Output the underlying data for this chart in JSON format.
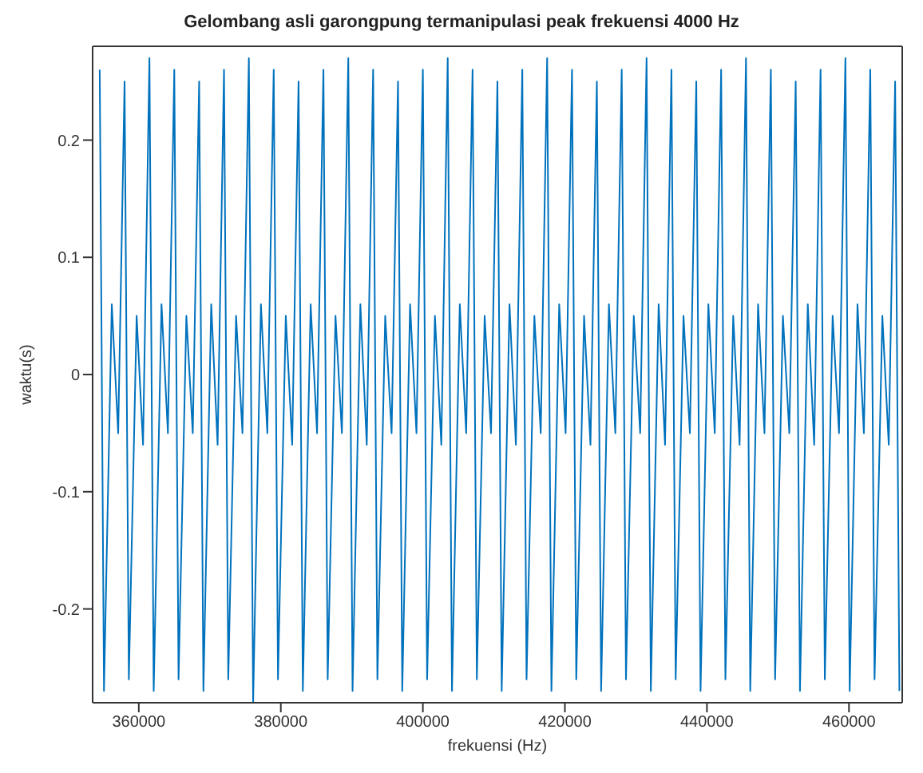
{
  "chart_data": {
    "type": "line",
    "title": "Gelombang asli garongpung termanipulasi peak frekuensi 4000 Hz",
    "xlabel": "frekuensi (Hz)",
    "ylabel": "waktu(s)",
    "x": [
      354500,
      355100,
      356200,
      357100,
      358000,
      358600,
      359700,
      360600,
      361500,
      362100,
      363200,
      364100,
      365000,
      365600,
      366700,
      367600,
      368500,
      369100,
      370200,
      371100,
      372000,
      372600,
      373700,
      374600,
      375500,
      376100,
      377200,
      378100,
      379000,
      379600,
      380700,
      381600,
      382500,
      383100,
      384200,
      385100,
      386000,
      386600,
      387700,
      388600,
      389500,
      390100,
      391200,
      392100,
      393000,
      393600,
      394700,
      395600,
      396500,
      397100,
      398200,
      399100,
      400000,
      400600,
      401700,
      402600,
      403500,
      404100,
      405200,
      406100,
      407000,
      407600,
      408700,
      409600,
      410500,
      411100,
      412200,
      413100,
      414000,
      414600,
      415700,
      416600,
      417500,
      418100,
      419200,
      420100,
      421000,
      421600,
      422700,
      423600,
      424500,
      425100,
      426200,
      427100,
      428000,
      428600,
      429700,
      430600,
      431500,
      432100,
      433200,
      434100,
      435000,
      435600,
      436700,
      437600,
      438500,
      439100,
      440200,
      441100,
      442000,
      442600,
      443700,
      444600,
      445500,
      446100,
      447200,
      448100,
      449000,
      449600,
      450700,
      451600,
      452500,
      453100,
      454200,
      455100,
      456000,
      456600,
      457700,
      458600,
      459500,
      460100,
      461200,
      462100,
      463000,
      463600,
      464700,
      465600,
      466500,
      467100
    ],
    "series": [
      {
        "color": "#0072bd",
        "values": [
          0.26,
          -0.27,
          0.06,
          -0.05,
          0.25,
          -0.26,
          0.05,
          -0.06,
          0.27,
          -0.27,
          0.06,
          -0.05,
          0.26,
          -0.26,
          0.05,
          -0.05,
          0.25,
          -0.27,
          0.06,
          -0.06,
          0.26,
          -0.26,
          0.05,
          -0.05,
          0.27,
          -0.28,
          0.06,
          -0.05,
          0.26,
          -0.26,
          0.05,
          -0.06,
          0.25,
          -0.27,
          0.06,
          -0.05,
          0.26,
          -0.26,
          0.05,
          -0.05,
          0.27,
          -0.27,
          0.06,
          -0.06,
          0.26,
          -0.26,
          0.05,
          -0.05,
          0.25,
          -0.27,
          0.06,
          -0.05,
          0.26,
          -0.26,
          0.05,
          -0.06,
          0.27,
          -0.27,
          0.06,
          -0.05,
          0.26,
          -0.26,
          0.05,
          -0.05,
          0.25,
          -0.27,
          0.06,
          -0.06,
          0.26,
          -0.26,
          0.05,
          -0.05,
          0.27,
          -0.27,
          0.06,
          -0.05,
          0.26,
          -0.26,
          0.05,
          -0.06,
          0.25,
          -0.27,
          0.06,
          -0.05,
          0.26,
          -0.26,
          0.05,
          -0.05,
          0.27,
          -0.27,
          0.06,
          -0.06,
          0.26,
          -0.26,
          0.05,
          -0.05,
          0.25,
          -0.27,
          0.06,
          -0.05,
          0.26,
          -0.26,
          0.05,
          -0.06,
          0.27,
          -0.27,
          0.06,
          -0.05,
          0.26,
          -0.26,
          0.05,
          -0.05,
          0.25,
          -0.27,
          0.06,
          -0.06,
          0.26,
          -0.26,
          0.05,
          -0.05,
          0.27,
          -0.27,
          0.06,
          -0.05,
          0.26,
          -0.26,
          0.05,
          -0.06,
          0.25,
          -0.27
        ]
      }
    ],
    "xlim": [
      353500,
      467500
    ],
    "xticks": [
      360000,
      380000,
      400000,
      420000,
      440000,
      460000
    ],
    "ylim": [
      -0.28,
      0.28
    ],
    "yticks": [
      -0.2,
      -0.1,
      0,
      0.1,
      0.2
    ],
    "grid": false,
    "legend": false,
    "marker": "none",
    "line_style": "solid"
  }
}
